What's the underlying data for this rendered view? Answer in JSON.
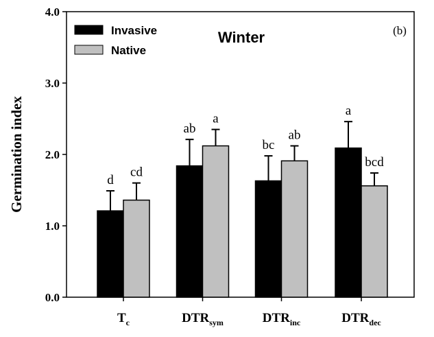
{
  "chart_data": {
    "type": "bar",
    "title": "Winter",
    "panel_label": "(b)",
    "xlabel": "",
    "ylabel": "Germination index",
    "ylim": [
      0,
      4
    ],
    "yticks": [
      "0.0",
      "1.0",
      "2.0",
      "3.0",
      "4.0"
    ],
    "categories": [
      {
        "main": "T",
        "sub": "c"
      },
      {
        "main": "DTR",
        "sub": "sym"
      },
      {
        "main": "DTR",
        "sub": "inc"
      },
      {
        "main": "DTR",
        "sub": "dec"
      }
    ],
    "legend_position": "top-left",
    "grid": false,
    "series": [
      {
        "name": "Invasive",
        "color": "#000000",
        "values": [
          1.21,
          1.84,
          1.63,
          2.09
        ],
        "error": [
          0.28,
          0.37,
          0.35,
          0.37
        ],
        "letters": [
          "d",
          "ab",
          "bc",
          "a"
        ]
      },
      {
        "name": "Native",
        "color": "#c0c0c0",
        "values": [
          1.36,
          2.12,
          1.91,
          1.56
        ],
        "error": [
          0.24,
          0.23,
          0.21,
          0.18
        ],
        "letters": [
          "cd",
          "a",
          "ab",
          "bcd"
        ]
      }
    ]
  }
}
